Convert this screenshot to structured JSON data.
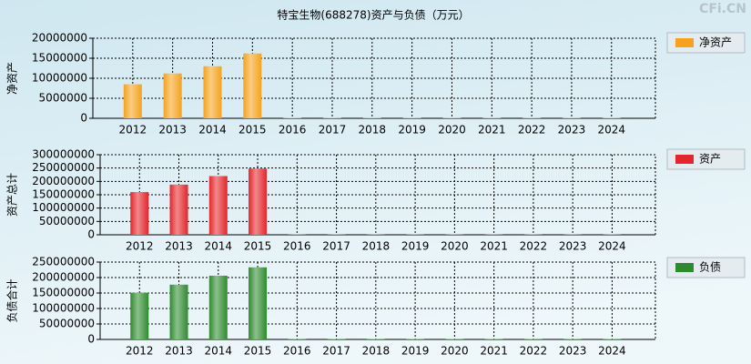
{
  "watermark": "CFi.CN",
  "chart_data": [
    {
      "type": "bar",
      "title": "特宝生物(688278)资产与负债（万元）",
      "ylabel": "净资产",
      "categories": [
        "2012",
        "2013",
        "2014",
        "2015",
        "2016",
        "2017",
        "2018",
        "2019",
        "2020",
        "2021",
        "2022",
        "2023",
        "2024"
      ],
      "series": [
        {
          "name": "净资产",
          "color": "#f5a21e",
          "values": [
            8500000,
            11200000,
            13000000,
            16200000,
            150000,
            150000,
            150000,
            150000,
            150000,
            150000,
            150000,
            150000,
            150000
          ]
        }
      ],
      "ylim": [
        0,
        20000000
      ],
      "yticks": [
        0,
        5000000,
        10000000,
        15000000,
        20000000
      ],
      "grid": true
    },
    {
      "type": "bar",
      "ylabel": "资产总计",
      "categories": [
        "2012",
        "2013",
        "2014",
        "2015",
        "2016",
        "2017",
        "2018",
        "2019",
        "2020",
        "2021",
        "2022",
        "2023",
        "2024"
      ],
      "series": [
        {
          "name": "资产",
          "color": "#e3262b",
          "values": [
            160000000,
            188000000,
            220000000,
            248000000,
            2000000,
            2000000,
            2000000,
            2000000,
            2000000,
            2000000,
            2000000,
            2000000,
            2000000
          ]
        }
      ],
      "ylim": [
        0,
        300000000
      ],
      "yticks": [
        0,
        50000000,
        100000000,
        150000000,
        200000000,
        250000000,
        300000000
      ],
      "grid": true
    },
    {
      "type": "bar",
      "ylabel": "负债合计",
      "categories": [
        "2012",
        "2013",
        "2014",
        "2015",
        "2016",
        "2017",
        "2018",
        "2019",
        "2020",
        "2021",
        "2022",
        "2023",
        "2024"
      ],
      "series": [
        {
          "name": "负债",
          "color": "#2f8a2f",
          "values": [
            151000000,
            177000000,
            206000000,
            233000000,
            1500000,
            1500000,
            1500000,
            1500000,
            1500000,
            1500000,
            1500000,
            1500000,
            1500000
          ]
        }
      ],
      "ylim": [
        0,
        250000000
      ],
      "yticks": [
        0,
        50000000,
        100000000,
        150000000,
        200000000,
        250000000
      ],
      "grid": true
    }
  ]
}
